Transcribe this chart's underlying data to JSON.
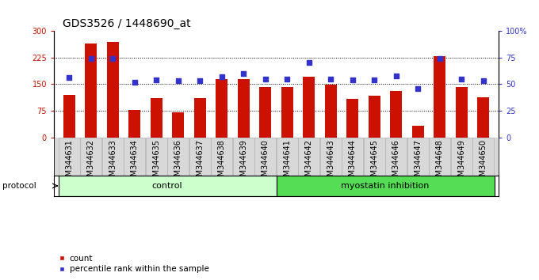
{
  "title": "GDS3526 / 1448690_at",
  "samples": [
    "GSM344631",
    "GSM344632",
    "GSM344633",
    "GSM344634",
    "GSM344635",
    "GSM344636",
    "GSM344637",
    "GSM344638",
    "GSM344639",
    "GSM344640",
    "GSM344641",
    "GSM344642",
    "GSM344643",
    "GSM344644",
    "GSM344645",
    "GSM344646",
    "GSM344647",
    "GSM344648",
    "GSM344649",
    "GSM344650"
  ],
  "counts": [
    120,
    265,
    268,
    78,
    110,
    72,
    110,
    165,
    165,
    143,
    143,
    170,
    148,
    108,
    118,
    130,
    33,
    228,
    143,
    113
  ],
  "percentile": [
    56,
    74,
    74,
    52,
    54,
    53,
    53,
    57,
    60,
    55,
    55,
    70,
    55,
    54,
    54,
    58,
    46,
    74,
    55,
    53
  ],
  "bar_color": "#cc1100",
  "dot_color": "#3333cc",
  "ylim_left": [
    0,
    300
  ],
  "ylim_right": [
    0,
    100
  ],
  "yticks_left": [
    0,
    75,
    150,
    225,
    300
  ],
  "yticks_right": [
    0,
    25,
    50,
    75,
    100
  ],
  "ytick_labels_left": [
    "0",
    "75",
    "150",
    "225",
    "300"
  ],
  "ytick_labels_right": [
    "0",
    "25",
    "50",
    "75",
    "100%"
  ],
  "hlines": [
    75,
    150,
    225
  ],
  "control_count": 10,
  "control_label": "control",
  "treatment_label": "myostatin inhibition",
  "protocol_label": "protocol",
  "legend_count": "count",
  "legend_percentile": "percentile rank within the sample",
  "bg_color": "#ffffff",
  "plot_bg_color": "#ffffff",
  "label_bg_color": "#d8d8d8",
  "title_fontsize": 10,
  "tick_fontsize": 7,
  "bar_width": 0.55,
  "control_color": "#ccffcc",
  "treatment_color": "#55dd55"
}
